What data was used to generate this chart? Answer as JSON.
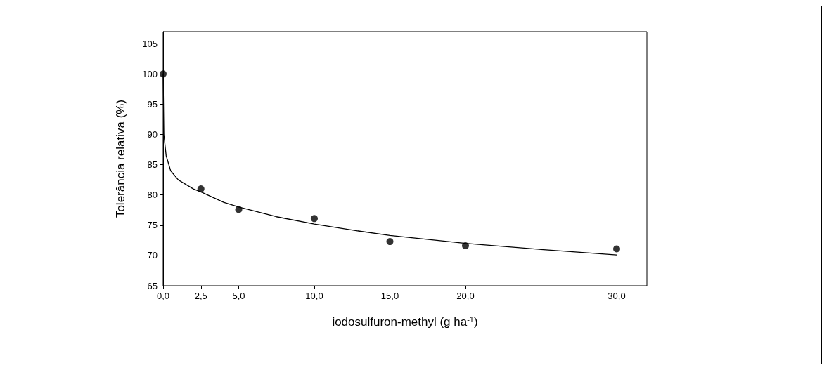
{
  "chart_data": {
    "type": "scatter",
    "xlabel": "iodosulfuron-methyl (g ha$^{-1}$)",
    "ylabel": "Tolerância relativa (%)",
    "xlim": [
      0,
      32
    ],
    "ylim": [
      65,
      107
    ],
    "xticks": [
      {
        "value": 0,
        "label": "0,0"
      },
      {
        "value": 2.5,
        "label": "2,5"
      },
      {
        "value": 5,
        "label": "5,0"
      },
      {
        "value": 10,
        "label": "10,0"
      },
      {
        "value": 15,
        "label": "15,0"
      },
      {
        "value": 20,
        "label": "20,0"
      },
      {
        "value": 30,
        "label": "30,0"
      }
    ],
    "yticks": [
      65,
      70,
      75,
      80,
      85,
      90,
      95,
      100,
      105
    ],
    "grid": false,
    "series": [
      {
        "marker": "circle",
        "color": "#000000",
        "x": [
          0,
          2.5,
          5,
          10,
          15,
          20,
          30
        ],
        "values": [
          100,
          81,
          77.6,
          76.1,
          72.3,
          71.6,
          71.1
        ]
      },
      {
        "type": "line",
        "marker": "none",
        "line_style": "solid",
        "color": "#000000",
        "x": [
          0,
          0.05,
          0.2,
          0.5,
          1,
          2,
          2.5,
          4,
          5,
          7.5,
          10,
          12.5,
          15,
          20,
          25,
          30
        ],
        "values": [
          100,
          90,
          86.5,
          84,
          82.5,
          81,
          80.5,
          78.8,
          78,
          76.4,
          75.2,
          74.2,
          73.3,
          72,
          71,
          70.1
        ]
      }
    ]
  }
}
